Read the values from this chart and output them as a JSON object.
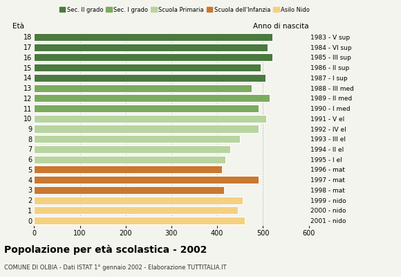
{
  "ages": [
    0,
    1,
    2,
    3,
    4,
    5,
    6,
    7,
    8,
    9,
    10,
    11,
    12,
    13,
    14,
    15,
    16,
    17,
    18
  ],
  "values": [
    460,
    445,
    455,
    415,
    490,
    410,
    418,
    428,
    450,
    490,
    507,
    490,
    515,
    475,
    505,
    495,
    520,
    510,
    520
  ],
  "right_labels": [
    "2001 - nido",
    "2000 - nido",
    "1999 - nido",
    "1998 - mat",
    "1997 - mat",
    "1996 - mat",
    "1995 - I el",
    "1994 - II el",
    "1993 - III el",
    "1992 - IV el",
    "1991 - V el",
    "1990 - I med",
    "1989 - II med",
    "1988 - III med",
    "1987 - I sup",
    "1986 - II sup",
    "1985 - III sup",
    "1984 - VI sup",
    "1983 - V sup"
  ],
  "bar_colors": [
    "#f5d080",
    "#f5d080",
    "#f5d080",
    "#c97830",
    "#c97830",
    "#c97830",
    "#b8d4a0",
    "#b8d4a0",
    "#b8d4a0",
    "#b8d4a0",
    "#b8d4a0",
    "#7aab5e",
    "#7aab5e",
    "#7aab5e",
    "#4a7a3f",
    "#4a7a3f",
    "#4a7a3f",
    "#4a7a3f",
    "#4a7a3f"
  ],
  "title": "Popolazione per età scolastica - 2002",
  "subtitle": "COMUNE DI OLBIA - Dati ISTAT 1° gennaio 2002 - Elaborazione TUTTITALIA.IT",
  "label_eta": "Età",
  "label_anno": "Anno di nascita",
  "xlim": [
    0,
    600
  ],
  "xticks": [
    0,
    100,
    200,
    300,
    400,
    500,
    600
  ],
  "legend_labels": [
    "Sec. II grado",
    "Sec. I grado",
    "Scuola Primaria",
    "Scuola dell'Infanzia",
    "Asilo Nido"
  ],
  "legend_colors": [
    "#4a7a3f",
    "#7aab5e",
    "#b8d4a0",
    "#c97830",
    "#f5d080"
  ],
  "bg_color": "#f4f4ee",
  "grid_color": "#bbbbbb"
}
